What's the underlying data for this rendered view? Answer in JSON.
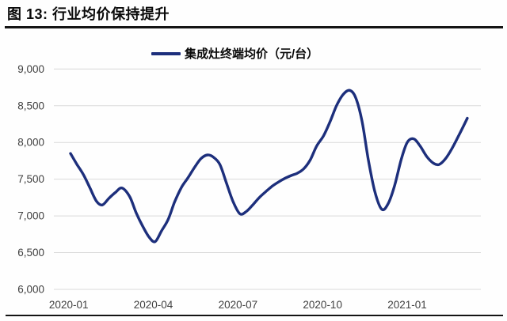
{
  "figure": {
    "title": "图 13: 行业均价保持提升"
  },
  "legend": {
    "label": "集成灶终端均价（元/台）",
    "marker_color": "#1d2f7c"
  },
  "chart_data": {
    "type": "line",
    "title": "图 13: 行业均价保持提升",
    "legend_entries": [
      "集成灶终端均价（元/台）"
    ],
    "xlabel": "",
    "ylabel": "",
    "ylim": [
      6000,
      9000
    ],
    "ytick_values": [
      6000,
      6500,
      7000,
      7500,
      8000,
      8500,
      9000
    ],
    "ytick_labels": [
      "6,000",
      "6,500",
      "7,000",
      "7,500",
      "8,000",
      "8,500",
      "9,000"
    ],
    "xtick_labels": [
      "2020-01",
      "2020-04",
      "2020-07",
      "2020-10",
      "2021-01"
    ],
    "grid": "horizontal",
    "gridline_color": "#d9d9d9",
    "axis_text_color": "#404040",
    "line_color": "#1d2f7c",
    "series": [
      {
        "name": "集成灶终端均价（元/台）",
        "points": [
          [
            "2020-01-03",
            7850
          ],
          [
            "2020-01-10",
            7700
          ],
          [
            "2020-01-17",
            7560
          ],
          [
            "2020-01-24",
            7380
          ],
          [
            "2020-01-31",
            7200
          ],
          [
            "2020-02-07",
            7150
          ],
          [
            "2020-02-14",
            7240
          ],
          [
            "2020-02-21",
            7320
          ],
          [
            "2020-02-28",
            7380
          ],
          [
            "2020-03-06",
            7260
          ],
          [
            "2020-03-13",
            7040
          ],
          [
            "2020-03-20",
            6860
          ],
          [
            "2020-03-27",
            6710
          ],
          [
            "2020-04-03",
            6650
          ],
          [
            "2020-04-10",
            6800
          ],
          [
            "2020-04-17",
            6950
          ],
          [
            "2020-04-24",
            7190
          ],
          [
            "2020-05-01",
            7390
          ],
          [
            "2020-05-08",
            7520
          ],
          [
            "2020-05-15",
            7660
          ],
          [
            "2020-05-22",
            7780
          ],
          [
            "2020-05-29",
            7830
          ],
          [
            "2020-06-05",
            7800
          ],
          [
            "2020-06-12",
            7700
          ],
          [
            "2020-06-19",
            7450
          ],
          [
            "2020-06-26",
            7200
          ],
          [
            "2020-07-03",
            7030
          ],
          [
            "2020-07-10",
            7060
          ],
          [
            "2020-07-17",
            7150
          ],
          [
            "2020-07-24",
            7250
          ],
          [
            "2020-07-31",
            7330
          ],
          [
            "2020-08-07",
            7400
          ],
          [
            "2020-08-14",
            7460
          ],
          [
            "2020-08-21",
            7510
          ],
          [
            "2020-08-28",
            7550
          ],
          [
            "2020-09-04",
            7580
          ],
          [
            "2020-09-11",
            7640
          ],
          [
            "2020-09-18",
            7760
          ],
          [
            "2020-09-25",
            7950
          ],
          [
            "2020-10-02",
            8090
          ],
          [
            "2020-10-09",
            8280
          ],
          [
            "2020-10-16",
            8500
          ],
          [
            "2020-10-23",
            8650
          ],
          [
            "2020-10-30",
            8710
          ],
          [
            "2020-11-06",
            8620
          ],
          [
            "2020-11-13",
            8300
          ],
          [
            "2020-11-20",
            7760
          ],
          [
            "2020-11-27",
            7330
          ],
          [
            "2020-12-04",
            7090
          ],
          [
            "2020-12-11",
            7170
          ],
          [
            "2020-12-18",
            7420
          ],
          [
            "2020-12-25",
            7770
          ],
          [
            "2021-01-01",
            8000
          ],
          [
            "2021-01-08",
            8050
          ],
          [
            "2021-01-15",
            7950
          ],
          [
            "2021-01-22",
            7810
          ],
          [
            "2021-01-29",
            7720
          ],
          [
            "2021-02-05",
            7700
          ],
          [
            "2021-02-12",
            7780
          ],
          [
            "2021-02-19",
            7920
          ],
          [
            "2021-02-26",
            8090
          ],
          [
            "2021-03-05",
            8330
          ]
        ]
      }
    ]
  }
}
